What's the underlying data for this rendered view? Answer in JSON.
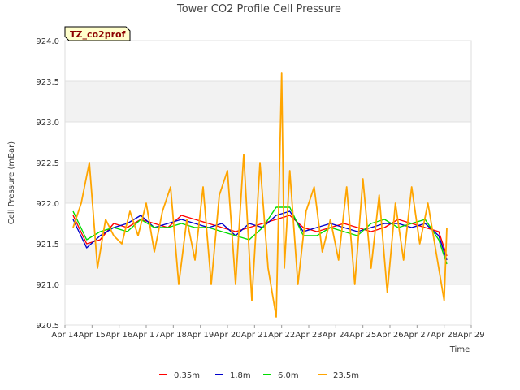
{
  "chart_data": {
    "type": "line",
    "title": "Tower CO2 Profile Cell Pressure",
    "badge": "TZ_co2prof",
    "xlabel": "Time",
    "ylabel": "Cell Pressure (mBar)",
    "ylim": [
      920.5,
      924.0
    ],
    "yticks": [
      "920.5",
      "921.0",
      "921.5",
      "922.0",
      "922.5",
      "923.0",
      "923.5",
      "924.0"
    ],
    "xlim": [
      14,
      29
    ],
    "xticks": [
      "Apr 14",
      "Apr 15",
      "Apr 16",
      "Apr 17",
      "Apr 18",
      "Apr 19",
      "Apr 20",
      "Apr 21",
      "Apr 22",
      "Apr 23",
      "Apr 24",
      "Apr 25",
      "Apr 26",
      "Apr 27",
      "Apr 28",
      "Apr 29"
    ],
    "grid": "horizontal bands",
    "legend_position": "bottom",
    "series": [
      {
        "name": "0.35m",
        "color": "#ff0000",
        "x": [
          14.3,
          14.8,
          15.3,
          15.8,
          16.3,
          16.8,
          17.3,
          17.8,
          18.3,
          18.8,
          19.3,
          19.8,
          20.3,
          20.8,
          21.3,
          21.8,
          22.3,
          22.8,
          23.3,
          23.8,
          24.3,
          24.8,
          25.3,
          25.8,
          26.3,
          26.8,
          27.3,
          27.8,
          28.1
        ],
        "values": [
          921.85,
          921.5,
          921.55,
          921.75,
          921.7,
          921.8,
          921.75,
          921.7,
          921.85,
          921.8,
          921.75,
          921.7,
          921.65,
          921.7,
          921.75,
          921.8,
          921.85,
          921.7,
          921.65,
          921.7,
          921.75,
          921.7,
          921.65,
          921.7,
          921.8,
          921.75,
          921.7,
          921.65,
          921.35
        ]
      },
      {
        "name": "1.8m",
        "color": "#0000cc",
        "x": [
          14.3,
          14.8,
          15.3,
          15.8,
          16.3,
          16.8,
          17.3,
          17.8,
          18.3,
          18.8,
          19.3,
          19.8,
          20.3,
          20.8,
          21.3,
          21.8,
          22.3,
          22.8,
          23.3,
          23.8,
          24.3,
          24.8,
          25.3,
          25.8,
          26.3,
          26.8,
          27.3,
          27.8,
          28.1
        ],
        "values": [
          921.8,
          921.45,
          921.6,
          921.7,
          921.75,
          921.85,
          921.7,
          921.75,
          921.8,
          921.75,
          921.7,
          921.75,
          921.6,
          921.75,
          921.7,
          921.85,
          921.9,
          921.65,
          921.7,
          921.75,
          921.7,
          921.65,
          921.7,
          921.75,
          921.75,
          921.7,
          921.75,
          921.6,
          921.3
        ]
      },
      {
        "name": "6.0m",
        "color": "#00dd00",
        "x": [
          14.3,
          14.8,
          15.3,
          15.8,
          16.3,
          16.8,
          17.3,
          17.8,
          18.3,
          18.8,
          19.3,
          19.8,
          20.3,
          20.8,
          21.3,
          21.8,
          22.3,
          22.8,
          23.3,
          23.8,
          24.3,
          24.8,
          25.3,
          25.8,
          26.3,
          26.8,
          27.3,
          27.8,
          28.1
        ],
        "values": [
          921.9,
          921.55,
          921.65,
          921.7,
          921.65,
          921.8,
          921.7,
          921.7,
          921.75,
          921.7,
          921.7,
          921.65,
          921.6,
          921.55,
          921.7,
          921.95,
          921.95,
          921.6,
          921.6,
          921.7,
          921.65,
          921.6,
          921.75,
          921.8,
          921.7,
          921.75,
          921.8,
          921.55,
          921.25
        ]
      },
      {
        "name": "23.5m",
        "color": "#ffa500",
        "x": [
          14.3,
          14.6,
          14.9,
          15.2,
          15.5,
          15.8,
          16.1,
          16.4,
          16.7,
          17.0,
          17.3,
          17.6,
          17.9,
          18.2,
          18.5,
          18.8,
          19.1,
          19.4,
          19.7,
          20.0,
          20.3,
          20.6,
          20.9,
          21.2,
          21.5,
          21.8,
          22.0,
          22.1,
          22.3,
          22.6,
          22.9,
          23.2,
          23.5,
          23.8,
          24.1,
          24.4,
          24.7,
          25.0,
          25.3,
          25.6,
          25.9,
          26.2,
          26.5,
          26.8,
          27.1,
          27.4,
          27.7,
          28.0,
          28.1
        ],
        "values": [
          921.7,
          922.0,
          922.5,
          921.2,
          921.8,
          921.6,
          921.5,
          921.9,
          921.6,
          922.0,
          921.4,
          921.9,
          922.2,
          921.0,
          921.8,
          921.3,
          922.2,
          921.0,
          922.1,
          922.4,
          921.0,
          922.6,
          920.8,
          922.5,
          921.2,
          920.6,
          923.6,
          921.2,
          922.4,
          921.0,
          921.9,
          922.2,
          921.4,
          921.8,
          921.3,
          922.2,
          921.0,
          922.3,
          921.2,
          922.1,
          920.9,
          922.0,
          921.3,
          922.2,
          921.5,
          922.0,
          921.4,
          920.8,
          921.7
        ]
      }
    ]
  }
}
